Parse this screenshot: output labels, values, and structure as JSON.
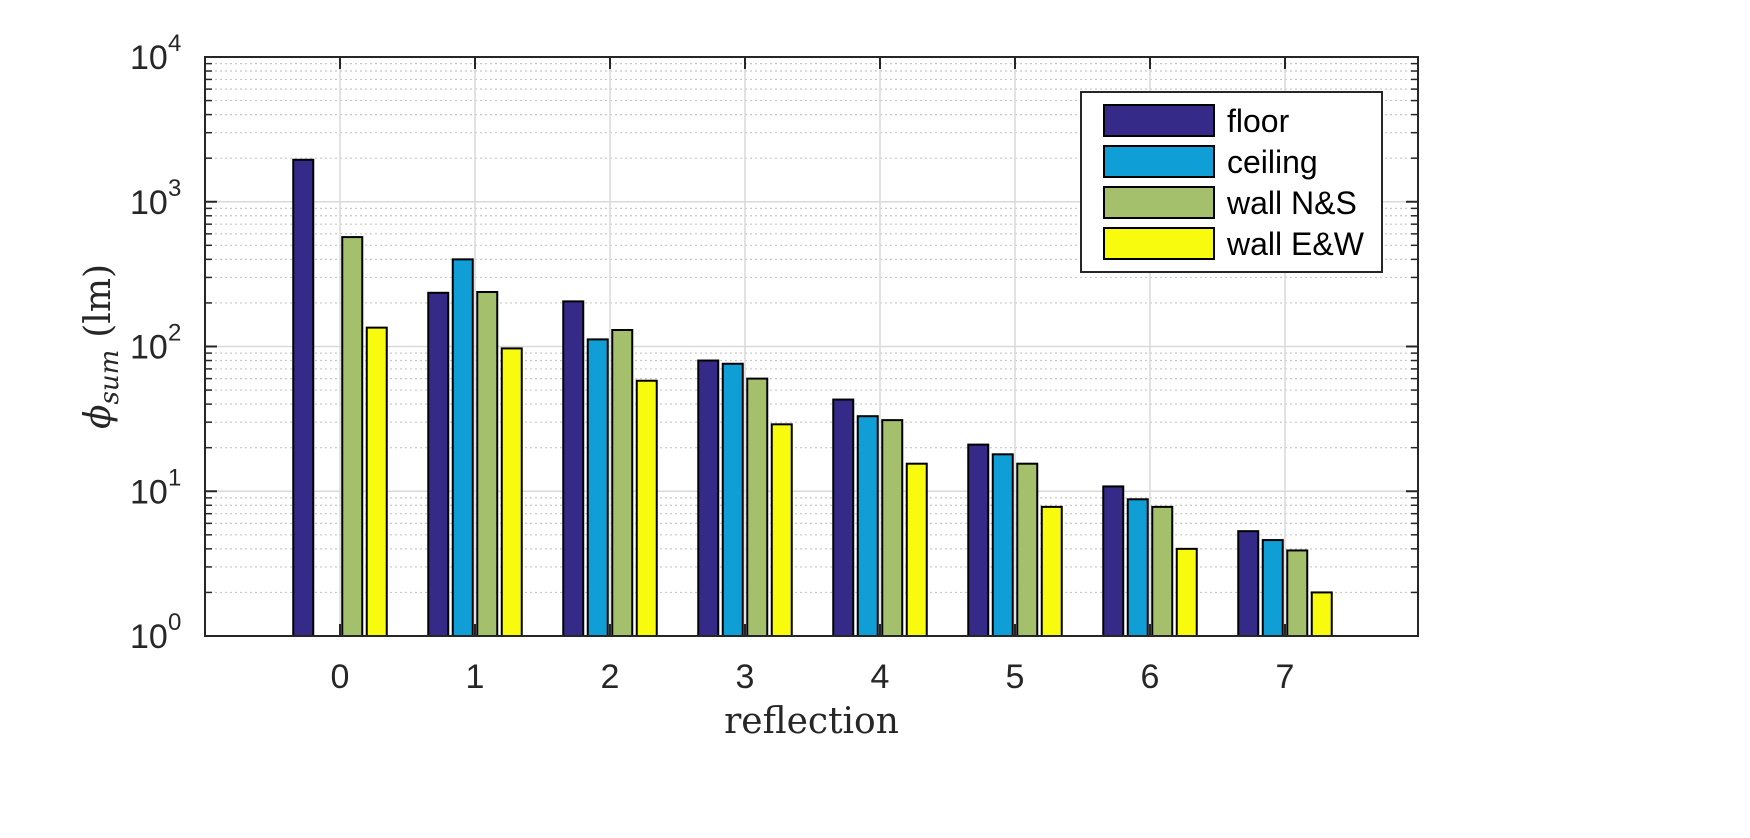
{
  "chart_data": {
    "type": "bar",
    "categories": [
      "0",
      "1",
      "2",
      "3",
      "4",
      "5",
      "6",
      "7"
    ],
    "series": [
      {
        "name": "floor",
        "color": "#352a87",
        "values": [
          1950,
          235,
          205,
          80,
          43,
          21,
          10.8,
          5.3
        ]
      },
      {
        "name": "ceiling",
        "color": "#0f9ed5",
        "values": [
          null,
          400,
          112,
          76,
          33,
          18,
          8.8,
          4.6
        ]
      },
      {
        "name": "wall N&S",
        "color": "#a5c06c",
        "values": [
          570,
          238,
          130,
          60,
          31,
          15.5,
          7.8,
          3.9
        ]
      },
      {
        "name": "wall E&W",
        "color": "#f9fb0e",
        "values": [
          135,
          97,
          58,
          29,
          15.5,
          7.8,
          4.0,
          2.0
        ]
      }
    ],
    "xlabel": "reflection",
    "ylabel": "(lm)",
    "ylabel_symbol": "ϕ",
    "ylabel_subscript": "sum",
    "yscale": "log",
    "ylim": [
      1,
      10000
    ],
    "yticks": [
      {
        "base": "10",
        "exp": "0"
      },
      {
        "base": "10",
        "exp": "1"
      },
      {
        "base": "10",
        "exp": "2"
      },
      {
        "base": "10",
        "exp": "3"
      },
      {
        "base": "10",
        "exp": "4"
      }
    ],
    "grid": true,
    "minor_grid": true,
    "legend_position": "top-right"
  }
}
